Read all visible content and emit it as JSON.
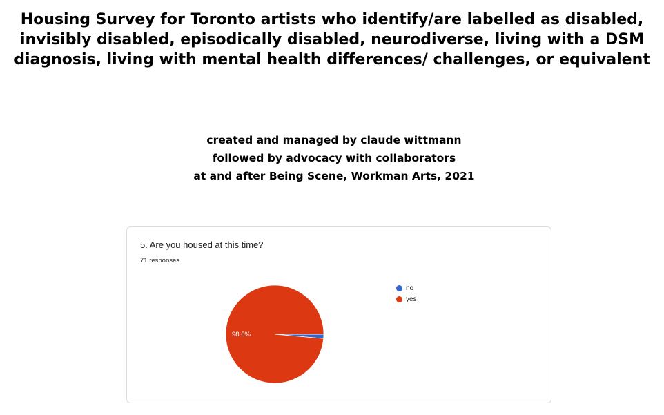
{
  "header": {
    "title": "Housing Survey for Toronto artists who identify/are labelled as disabled, invisibly disabled, episodically disabled, neurodiverse, living with a DSM diagnosis, living with mental health differences/ challenges, or equivalent",
    "credits": [
      "created and managed by claude wittmann",
      "followed by advocacy with collaborators",
      "at and after Being Scene, Workman Arts, 2021"
    ]
  },
  "chart_data": {
    "type": "pie",
    "title": "5. Are you housed at this time?",
    "subtitle": "71 responses",
    "slices": [
      {
        "label": "no",
        "value": 1.4,
        "color": "#3366cc"
      },
      {
        "label": "yes",
        "value": 98.6,
        "color": "#dc3912",
        "data_label": "98.6%"
      }
    ],
    "legend_position": "right"
  }
}
